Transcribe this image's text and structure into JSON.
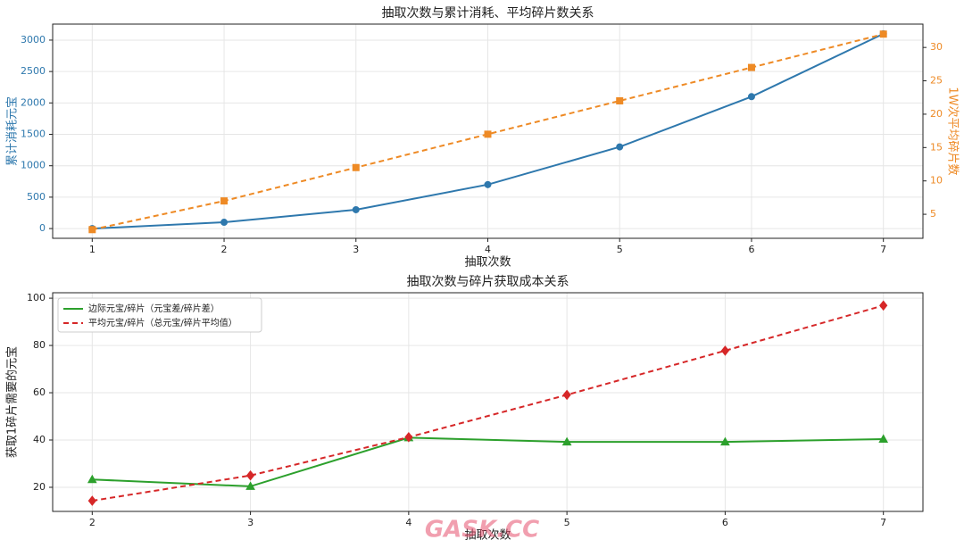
{
  "watermark": "GASK.CC",
  "chart_data": [
    {
      "type": "line",
      "title": "抽取次数与累计消耗、平均碎片数关系",
      "xlabel": "抽取次数",
      "ylabel": "累计消耗元宝",
      "y2label": "1W次平均碎片数",
      "x": [
        1,
        2,
        3,
        4,
        5,
        6,
        7
      ],
      "xlim": [
        0.7,
        7.3
      ],
      "xticks": [
        1,
        2,
        3,
        4,
        5,
        6,
        7
      ],
      "ylim": [
        -155,
        3255
      ],
      "yticks": [
        0,
        500,
        1000,
        1500,
        2000,
        2500,
        3000
      ],
      "y2lim": [
        1.4,
        33.5
      ],
      "y2ticks": [
        5,
        10,
        15,
        20,
        25,
        30
      ],
      "grid": true,
      "series": [
        {
          "name": "累计消耗元宝",
          "color": "#2e78ad",
          "marker": "circle",
          "linestyle": "solid",
          "values": [
            0,
            100,
            300,
            700,
            1300,
            2100,
            3100
          ]
        },
        {
          "name": "1W次平均碎片数",
          "color": "#ee8a25",
          "marker": "square",
          "linestyle": "dashed",
          "axis": "y2",
          "values": [
            2.7,
            7,
            12,
            17,
            22,
            27,
            32
          ]
        }
      ]
    },
    {
      "type": "line",
      "title": "抽取次数与碎片获取成本关系",
      "xlabel": "抽取次数",
      "ylabel": "获取1碎片需要的元宝",
      "x": [
        2,
        3,
        4,
        5,
        6,
        7
      ],
      "xlim": [
        1.75,
        7.25
      ],
      "xticks": [
        2,
        3,
        4,
        5,
        6,
        7
      ],
      "ylim": [
        9.8,
        102.3
      ],
      "yticks": [
        20,
        40,
        60,
        80,
        100
      ],
      "grid": true,
      "legend": "upper left",
      "series": [
        {
          "name": "边际元宝/碎片（元宝差/碎片差）",
          "color": "#2ca02c",
          "marker": "triangle",
          "linestyle": "solid",
          "values": [
            23.3,
            20.4,
            41,
            39.2,
            39.2,
            40.4
          ]
        },
        {
          "name": "平均元宝/碎片（总元宝/碎片平均值）",
          "color": "#d62728",
          "marker": "diamond",
          "linestyle": "dashed",
          "values": [
            14.3,
            25,
            41.2,
            59.1,
            77.8,
            96.9
          ]
        }
      ]
    }
  ]
}
